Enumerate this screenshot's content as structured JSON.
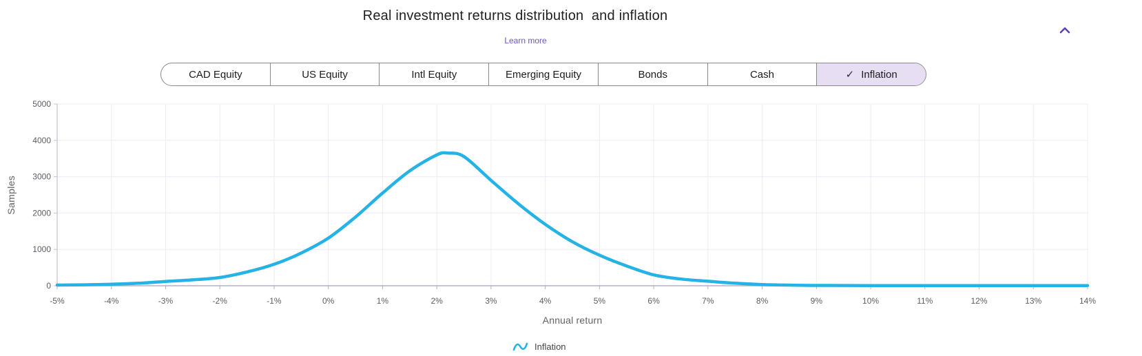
{
  "header": {
    "title": "Real investment returns distribution  and inflation",
    "learn_more_label": "Learn more",
    "collapse_icon": "chevron-up-icon",
    "collapse_icon_color": "#5e3fb5",
    "learn_more_color": "#6b54c4"
  },
  "toggle": {
    "check_glyph": "✓",
    "selected_bg": "#e7def4",
    "options": [
      {
        "label": "CAD Equity",
        "selected": false
      },
      {
        "label": "US Equity",
        "selected": false
      },
      {
        "label": "Intl Equity",
        "selected": false
      },
      {
        "label": "Emerging Equity",
        "selected": false
      },
      {
        "label": "Bonds",
        "selected": false
      },
      {
        "label": "Cash",
        "selected": false
      },
      {
        "label": "Inflation",
        "selected": true
      }
    ]
  },
  "legend": {
    "items": [
      {
        "icon": "wave-icon",
        "label": "Inflation",
        "color": "#25b2e5"
      }
    ]
  },
  "chart_data": {
    "type": "line",
    "title": "Real investment returns distribution  and inflation",
    "xlabel": "Annual return",
    "ylabel": "Samples",
    "xlim": [
      -5,
      14
    ],
    "ylim": [
      0,
      5000
    ],
    "grid": true,
    "legend_position": "bottom",
    "x_ticks": [
      -5,
      -4,
      -3,
      -2,
      -1,
      0,
      1,
      2,
      3,
      4,
      5,
      6,
      7,
      8,
      9,
      10,
      11,
      12,
      13,
      14
    ],
    "x_tick_labels": [
      "-5%",
      "-4%",
      "-3%",
      "-2%",
      "-1%",
      "0%",
      "1%",
      "2%",
      "3%",
      "4%",
      "5%",
      "6%",
      "7%",
      "8%",
      "9%",
      "10%",
      "11%",
      "12%",
      "13%",
      "14%"
    ],
    "y_ticks": [
      0,
      1000,
      2000,
      3000,
      4000,
      5000
    ],
    "y_tick_labels": [
      "0",
      "1000",
      "2000",
      "3000",
      "4000",
      "5000"
    ],
    "series": [
      {
        "name": "Inflation",
        "color": "#25b2e5",
        "points": [
          [
            -5,
            18
          ],
          [
            -4.5,
            26
          ],
          [
            -4,
            42
          ],
          [
            -3.5,
            70
          ],
          [
            -3,
            120
          ],
          [
            -2.5,
            162
          ],
          [
            -2,
            228
          ],
          [
            -1.5,
            380
          ],
          [
            -1,
            590
          ],
          [
            -0.5,
            900
          ],
          [
            0,
            1310
          ],
          [
            0.5,
            1890
          ],
          [
            1,
            2550
          ],
          [
            1.5,
            3160
          ],
          [
            2,
            3600
          ],
          [
            2.2,
            3650
          ],
          [
            2.5,
            3555
          ],
          [
            3,
            2900
          ],
          [
            3.5,
            2260
          ],
          [
            4,
            1690
          ],
          [
            4.5,
            1210
          ],
          [
            5,
            840
          ],
          [
            5.5,
            545
          ],
          [
            6,
            300
          ],
          [
            6.5,
            185
          ],
          [
            7,
            125
          ],
          [
            7.5,
            70
          ],
          [
            8,
            35
          ],
          [
            8.5,
            18
          ],
          [
            9,
            10
          ],
          [
            9.5,
            8
          ],
          [
            10,
            6
          ],
          [
            10.5,
            5
          ],
          [
            11,
            5
          ],
          [
            12,
            5
          ],
          [
            13,
            5
          ],
          [
            14,
            5
          ]
        ]
      }
    ],
    "colors": {
      "gridline": "#ececf2",
      "x_axis_line": "#b3b0c5",
      "y_axis_line": "#c3c1d0",
      "tick_label": "#5c5c66"
    }
  }
}
